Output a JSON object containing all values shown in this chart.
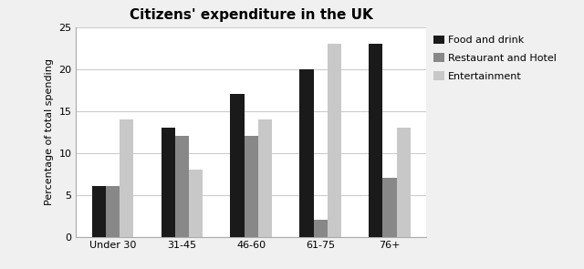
{
  "title": "Citizens' expenditure in the UK",
  "ylabel": "Percentage of total spending",
  "categories": [
    "Under 30",
    "31-45",
    "46-60",
    "61-75",
    "76+"
  ],
  "series": [
    {
      "label": "Food and drink",
      "values": [
        6,
        13,
        17,
        20,
        23
      ],
      "color": "#1a1a1a"
    },
    {
      "label": "Restaurant and Hotel",
      "values": [
        6,
        12,
        12,
        2,
        7
      ],
      "color": "#888888"
    },
    {
      "label": "Entertainment",
      "values": [
        14,
        8,
        14,
        23,
        13
      ],
      "color": "#c8c8c8"
    }
  ],
  "ylim": [
    0,
    25
  ],
  "yticks": [
    0,
    5,
    10,
    15,
    20,
    25
  ],
  "bar_width": 0.2,
  "plot_bg_color": "#f0f0f0",
  "fig_bg_color": "#f0f0f0",
  "title_fontsize": 11,
  "axis_label_fontsize": 8,
  "tick_fontsize": 8,
  "legend_fontsize": 8
}
